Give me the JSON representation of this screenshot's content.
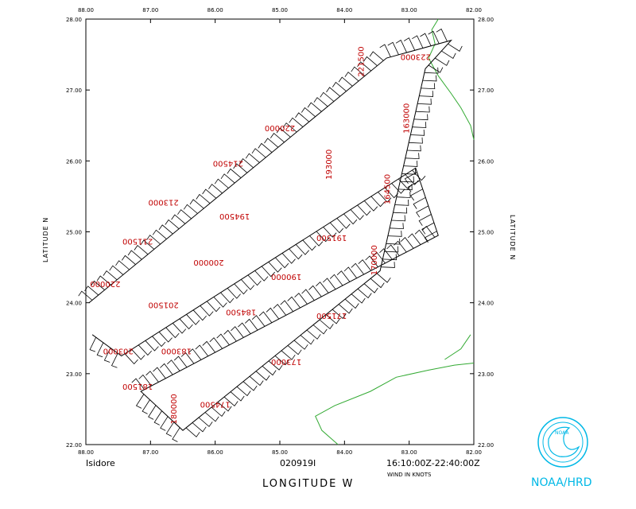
{
  "header": {
    "storm_name": "Isidore",
    "date_code": "020919I",
    "time_range": "16:10:00Z-22:40:00Z",
    "wind_units": "WIND IN KNOTS",
    "x_axis_title": "LONGITUDE   W",
    "y_axis_title": "LATITUDE   N",
    "agency": "NOAA/HRD"
  },
  "axes": {
    "lon_ticks": [
      "88.00",
      "87.00",
      "86.00",
      "85.00",
      "84.00",
      "83.00",
      "82.00"
    ],
    "lat_ticks": [
      "28.00",
      "27.00",
      "26.00",
      "25.00",
      "24.00",
      "23.00",
      "22.00"
    ]
  },
  "colors": {
    "frame": "#000000",
    "coast": "#33aa33",
    "time_labels": "#c00000",
    "logo": "#00b8e6"
  },
  "flight_track": [
    [
      -87.9,
      23.55
    ],
    [
      -87.45,
      23.25
    ],
    [
      -82.9,
      25.9
    ],
    [
      -82.55,
      24.95
    ],
    [
      -87.15,
      22.75
    ],
    [
      -86.5,
      22.2
    ],
    [
      -83.45,
      24.45
    ],
    [
      -82.75,
      27.3
    ],
    [
      -82.35,
      27.7
    ],
    [
      -83.35,
      27.45
    ],
    [
      -87.95,
      24.0
    ]
  ],
  "time_labels": [
    {
      "text": "220000",
      "lon": -87.7,
      "lat": 24.3,
      "rot": 180
    },
    {
      "text": "211500",
      "lon": -87.2,
      "lat": 24.9,
      "rot": 180
    },
    {
      "text": "213000",
      "lon": -86.8,
      "lat": 25.45,
      "rot": 180
    },
    {
      "text": "214500",
      "lon": -85.8,
      "lat": 26.0,
      "rot": 180
    },
    {
      "text": "220000",
      "lon": -85.0,
      "lat": 26.5,
      "rot": 180
    },
    {
      "text": "221500",
      "lon": -83.7,
      "lat": 27.4,
      "rot": -90
    },
    {
      "text": "223000",
      "lon": -82.9,
      "lat": 27.5,
      "rot": 180
    },
    {
      "text": "163000",
      "lon": -83.0,
      "lat": 26.6,
      "rot": -90
    },
    {
      "text": "193000",
      "lon": -84.2,
      "lat": 25.95,
      "rot": -90
    },
    {
      "text": "164500",
      "lon": -83.3,
      "lat": 25.6,
      "rot": -90
    },
    {
      "text": "194500",
      "lon": -85.7,
      "lat": 25.25,
      "rot": 180
    },
    {
      "text": "191500",
      "lon": -84.2,
      "lat": 24.95,
      "rot": 180
    },
    {
      "text": "170000",
      "lon": -83.5,
      "lat": 24.6,
      "rot": -90
    },
    {
      "text": "200000",
      "lon": -86.1,
      "lat": 24.6,
      "rot": 180
    },
    {
      "text": "190000",
      "lon": -84.9,
      "lat": 24.4,
      "rot": 180
    },
    {
      "text": "201500",
      "lon": -86.8,
      "lat": 24.0,
      "rot": 180
    },
    {
      "text": "184500",
      "lon": -85.6,
      "lat": 23.9,
      "rot": 180
    },
    {
      "text": "171500",
      "lon": -84.2,
      "lat": 23.85,
      "rot": 180
    },
    {
      "text": "203000",
      "lon": -87.5,
      "lat": 23.35,
      "rot": 180
    },
    {
      "text": "183000",
      "lon": -86.6,
      "lat": 23.35,
      "rot": 180
    },
    {
      "text": "173000",
      "lon": -84.9,
      "lat": 23.2,
      "rot": 180
    },
    {
      "text": "181500",
      "lon": -87.2,
      "lat": 22.85,
      "rot": 180
    },
    {
      "text": "174500",
      "lon": -86.0,
      "lat": 22.6,
      "rot": 180
    },
    {
      "text": "180000",
      "lon": -86.6,
      "lat": 22.5,
      "rot": -90
    }
  ],
  "coast_lines": [
    [
      [
        -82.55,
        28.0
      ],
      [
        -82.65,
        27.85
      ],
      [
        -82.6,
        27.65
      ],
      [
        -82.7,
        27.45
      ],
      [
        -82.55,
        27.2
      ],
      [
        -82.35,
        26.95
      ],
      [
        -82.2,
        26.75
      ],
      [
        -82.05,
        26.5
      ],
      [
        -82.0,
        26.3
      ]
    ],
    [
      [
        -84.1,
        22.0
      ],
      [
        -84.35,
        22.2
      ],
      [
        -84.45,
        22.4
      ],
      [
        -84.15,
        22.55
      ],
      [
        -83.6,
        22.75
      ],
      [
        -83.2,
        22.95
      ],
      [
        -82.7,
        23.05
      ],
      [
        -82.3,
        23.12
      ],
      [
        -82.0,
        23.15
      ]
    ],
    [
      [
        -82.05,
        23.55
      ],
      [
        -82.2,
        23.35
      ],
      [
        -82.45,
        23.2
      ]
    ]
  ]
}
